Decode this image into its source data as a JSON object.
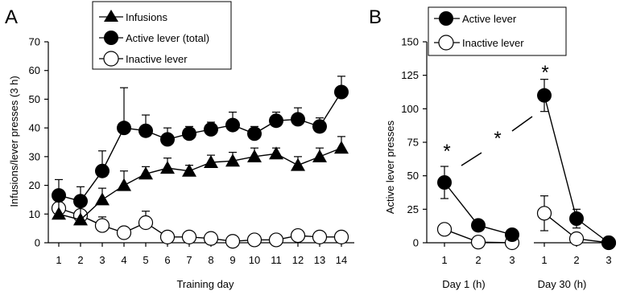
{
  "chart_data": [
    {
      "panel_label": "A",
      "type": "line",
      "xlabel": "Training day",
      "ylabel": "Infusions/lever presses (3 h)",
      "ylim": [
        0,
        70
      ],
      "yticks": [
        "0",
        "10",
        "20",
        "30",
        "40",
        "50",
        "60",
        "70"
      ],
      "categories": [
        "1",
        "2",
        "3",
        "4",
        "5",
        "6",
        "7",
        "8",
        "9",
        "10",
        "11",
        "12",
        "13",
        "14"
      ],
      "legend_position": "top-center",
      "series": [
        {
          "name": "Infusions",
          "marker": "triangle",
          "values": [
            10,
            8,
            15,
            20,
            24,
            26,
            25,
            28,
            28.5,
            30,
            31,
            27,
            30,
            33
          ],
          "error": [
            5,
            6,
            4,
            5,
            2.5,
            3.5,
            2,
            2.5,
            3,
            3,
            2,
            3,
            3,
            4
          ]
        },
        {
          "name": "Active lever (total)",
          "marker": "filled-circle",
          "values": [
            16.5,
            14.5,
            25,
            40,
            39,
            36,
            38,
            39.5,
            41,
            38,
            42.5,
            43,
            40.5,
            52.5
          ],
          "error": [
            5.5,
            5,
            7,
            14,
            5.5,
            4,
            2.5,
            2.5,
            4.5,
            2.5,
            3,
            4,
            3,
            5.5
          ]
        },
        {
          "name": "Inactive lever",
          "marker": "open-circle",
          "values": [
            12,
            9.5,
            6,
            3.5,
            7,
            2,
            2,
            1.5,
            0.5,
            1,
            1,
            2.5,
            2,
            2
          ],
          "error": [
            3,
            3.5,
            3,
            0,
            4,
            0,
            0,
            0,
            0,
            0,
            0,
            0,
            0,
            0
          ]
        }
      ]
    },
    {
      "panel_label": "B",
      "type": "line",
      "ylabel": "Active lever presses",
      "ylim": [
        0,
        150
      ],
      "yticks": [
        "0",
        "25",
        "50",
        "75",
        "100",
        "125",
        "150"
      ],
      "group_labels": [
        "Day 1 (h)",
        "Day 30 (h)"
      ],
      "tick_labels": [
        "1",
        "2",
        "3",
        "1",
        "2",
        "3"
      ],
      "legend_position": "top-center",
      "annotations": [
        "*",
        "*",
        "*"
      ],
      "series": [
        {
          "name": "Active lever",
          "marker": "filled-circle",
          "day1": [
            45,
            13,
            6
          ],
          "day1_error": [
            12,
            0,
            0
          ],
          "day30": [
            110,
            18,
            0
          ],
          "day30_error": [
            12,
            7,
            0
          ]
        },
        {
          "name": "Inactive lever",
          "marker": "open-circle",
          "day1": [
            10,
            0.5,
            0
          ],
          "day1_error": [
            0,
            0,
            0
          ],
          "day30": [
            22,
            3,
            0
          ],
          "day30_error": [
            13,
            0,
            0
          ]
        }
      ]
    }
  ]
}
